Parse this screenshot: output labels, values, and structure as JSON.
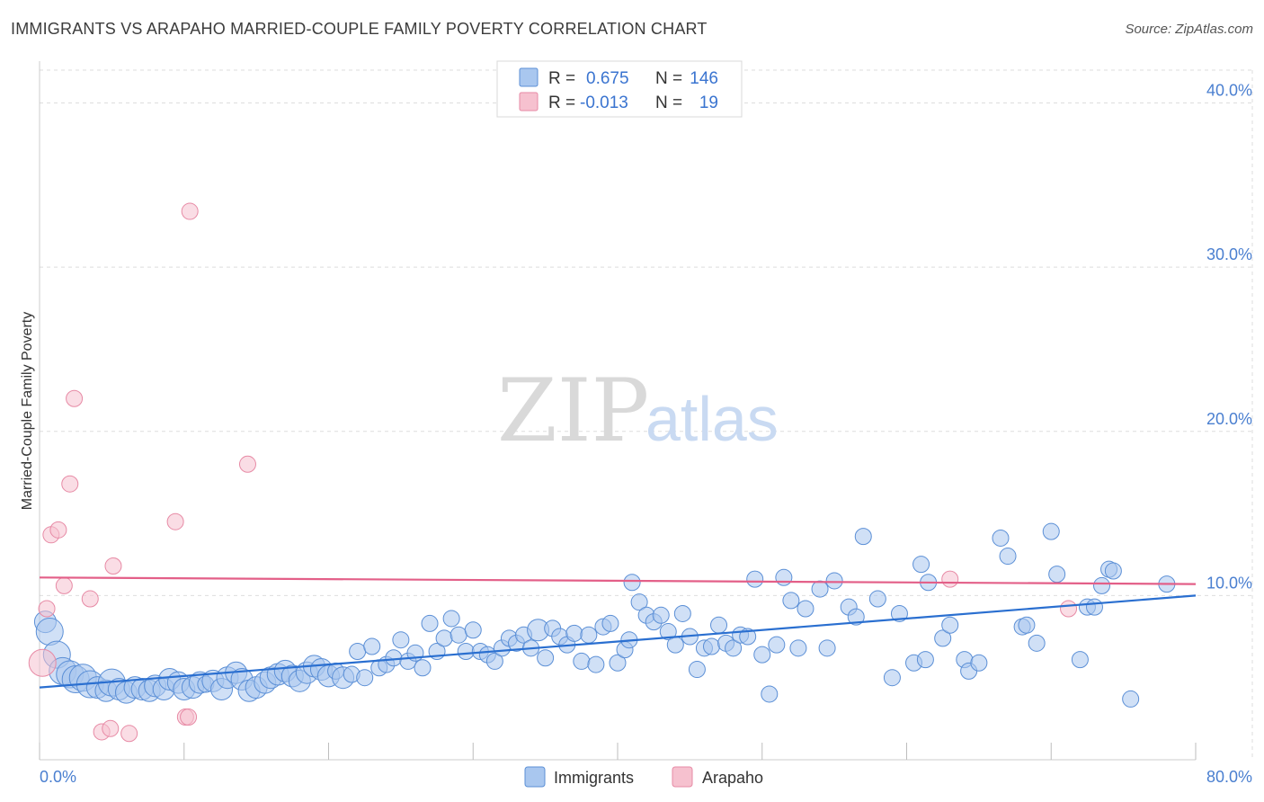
{
  "header": {
    "title": "IMMIGRANTS VS ARAPAHO MARRIED-COUPLE FAMILY POVERTY CORRELATION CHART",
    "source": "Source: ZipAtlas.com"
  },
  "watermark": {
    "zip": "ZIP",
    "atlas": "atlas"
  },
  "colors": {
    "immigrants_fill": "#a9c7ef",
    "immigrants_stroke": "#5b8fd6",
    "immigrants_line": "#2a6fd0",
    "arapaho_fill": "#f6c1cf",
    "arapaho_stroke": "#e78aa5",
    "arapaho_line": "#e35f88",
    "grid": "#dddddd",
    "axis_text": "#4a7fd0"
  },
  "legend": {
    "rows": [
      {
        "r_label": "R =",
        "r_value": "0.675",
        "n_label": "N =",
        "n_value": "146"
      },
      {
        "r_label": "R =",
        "r_value": "-0.013",
        "n_label": "N =",
        "n_value": "19"
      }
    ]
  },
  "chart_data": {
    "type": "scatter",
    "title": "IMMIGRANTS VS ARAPAHO MARRIED-COUPLE FAMILY POVERTY CORRELATION CHART",
    "xlabel": "",
    "ylabel": "Married-Couple Family Poverty",
    "xlim": [
      0,
      80
    ],
    "ylim": [
      0,
      42
    ],
    "x_tick_labels": [
      "0.0%",
      "80.0%"
    ],
    "y_ticks": [
      10,
      20,
      30,
      40
    ],
    "y_tick_labels": [
      "10.0%",
      "20.0%",
      "30.0%",
      "40.0%"
    ],
    "grid": true,
    "series": [
      {
        "name": "Immigrants",
        "trend": {
          "x0": 0,
          "y0": 4.4,
          "x1": 80,
          "y1": 10.0
        },
        "points": [
          [
            0.4,
            8.4,
            2
          ],
          [
            0.7,
            7.8,
            3
          ],
          [
            1.2,
            6.4,
            3
          ],
          [
            1.6,
            5.4,
            3
          ],
          [
            2.1,
            5.2,
            3
          ],
          [
            2.5,
            4.9,
            3
          ],
          [
            3.0,
            5.0,
            3
          ],
          [
            3.5,
            4.6,
            3
          ],
          [
            4.0,
            4.4,
            2
          ],
          [
            4.6,
            4.2,
            2
          ],
          [
            5.0,
            4.7,
            3
          ],
          [
            5.5,
            4.3,
            2
          ],
          [
            6.0,
            4.1,
            2
          ],
          [
            6.6,
            4.4,
            2
          ],
          [
            7.1,
            4.3,
            2
          ],
          [
            7.6,
            4.2,
            2
          ],
          [
            8.0,
            4.5,
            2
          ],
          [
            8.6,
            4.3,
            2
          ],
          [
            9.0,
            4.9,
            2
          ],
          [
            9.6,
            4.7,
            2
          ],
          [
            10.0,
            4.3,
            2
          ],
          [
            10.6,
            4.4,
            2
          ],
          [
            11.1,
            4.7,
            2
          ],
          [
            11.5,
            4.6,
            1
          ],
          [
            12.0,
            4.8,
            2
          ],
          [
            12.6,
            4.3,
            2
          ],
          [
            13.0,
            5.0,
            2
          ],
          [
            13.6,
            5.3,
            2
          ],
          [
            14.0,
            4.9,
            2
          ],
          [
            14.5,
            4.2,
            2
          ],
          [
            15.0,
            4.4,
            2
          ],
          [
            15.6,
            4.7,
            2
          ],
          [
            16.0,
            5.0,
            2
          ],
          [
            16.5,
            5.2,
            2
          ],
          [
            17.0,
            5.4,
            2
          ],
          [
            17.5,
            5.1,
            2
          ],
          [
            18.0,
            4.8,
            2
          ],
          [
            18.5,
            5.3,
            2
          ],
          [
            19.0,
            5.7,
            2
          ],
          [
            19.5,
            5.5,
            2
          ],
          [
            20.0,
            5.1,
            2
          ],
          [
            20.5,
            5.4,
            1
          ],
          [
            21.0,
            5.0,
            2
          ],
          [
            21.6,
            5.2,
            1
          ],
          [
            22.0,
            6.6,
            1
          ],
          [
            22.5,
            5.0,
            1
          ],
          [
            23.0,
            6.9,
            1
          ],
          [
            23.5,
            5.6,
            1
          ],
          [
            24.0,
            5.8,
            1
          ],
          [
            24.5,
            6.2,
            1
          ],
          [
            25.0,
            7.3,
            1
          ],
          [
            25.5,
            6.0,
            1
          ],
          [
            26.0,
            6.5,
            1
          ],
          [
            26.5,
            5.6,
            1
          ],
          [
            27.0,
            8.3,
            1
          ],
          [
            27.5,
            6.6,
            1
          ],
          [
            28.0,
            7.4,
            1
          ],
          [
            28.5,
            8.6,
            1
          ],
          [
            29.0,
            7.6,
            1
          ],
          [
            29.5,
            6.6,
            1
          ],
          [
            30.0,
            7.9,
            1
          ],
          [
            30.5,
            6.6,
            1
          ],
          [
            31.0,
            6.4,
            1
          ],
          [
            31.5,
            6.0,
            1
          ],
          [
            32.0,
            6.8,
            1
          ],
          [
            32.5,
            7.4,
            1
          ],
          [
            33.0,
            7.1,
            1
          ],
          [
            33.5,
            7.6,
            1
          ],
          [
            34.0,
            6.8,
            1
          ],
          [
            34.5,
            7.9,
            2
          ],
          [
            35.0,
            6.2,
            1
          ],
          [
            35.5,
            8.0,
            1
          ],
          [
            36.0,
            7.5,
            1
          ],
          [
            36.5,
            7.0,
            1
          ],
          [
            37.0,
            7.7,
            1
          ],
          [
            37.5,
            6.0,
            1
          ],
          [
            38.0,
            7.6,
            1
          ],
          [
            38.5,
            5.8,
            1
          ],
          [
            39.0,
            8.1,
            1
          ],
          [
            39.5,
            8.3,
            1
          ],
          [
            40.0,
            5.9,
            1
          ],
          [
            40.5,
            6.7,
            1
          ],
          [
            40.8,
            7.3,
            1
          ],
          [
            41.0,
            10.8,
            1
          ],
          [
            41.5,
            9.6,
            1
          ],
          [
            42.0,
            8.8,
            1
          ],
          [
            42.5,
            8.4,
            1
          ],
          [
            43.0,
            8.8,
            1
          ],
          [
            43.5,
            7.8,
            1
          ],
          [
            44.0,
            7.0,
            1
          ],
          [
            44.5,
            8.9,
            1
          ],
          [
            45.0,
            7.5,
            1
          ],
          [
            45.5,
            5.5,
            1
          ],
          [
            46.0,
            6.8,
            1
          ],
          [
            46.5,
            6.9,
            1
          ],
          [
            47.0,
            8.2,
            1
          ],
          [
            47.5,
            7.1,
            1
          ],
          [
            48.0,
            6.8,
            1
          ],
          [
            48.5,
            7.6,
            1
          ],
          [
            49.0,
            7.5,
            1
          ],
          [
            49.5,
            11.0,
            1
          ],
          [
            50.0,
            6.4,
            1
          ],
          [
            50.5,
            4.0,
            1
          ],
          [
            51.0,
            7.0,
            1
          ],
          [
            51.5,
            11.1,
            1
          ],
          [
            52.0,
            9.7,
            1
          ],
          [
            52.5,
            6.8,
            1
          ],
          [
            53.0,
            9.2,
            1
          ],
          [
            54.0,
            10.4,
            1
          ],
          [
            54.5,
            6.8,
            1
          ],
          [
            55.0,
            10.9,
            1
          ],
          [
            56.0,
            9.3,
            1
          ],
          [
            56.5,
            8.7,
            1
          ],
          [
            57.0,
            13.6,
            1
          ],
          [
            58.0,
            9.8,
            1
          ],
          [
            59.0,
            5.0,
            1
          ],
          [
            59.5,
            8.9,
            1
          ],
          [
            60.5,
            5.9,
            1
          ],
          [
            61.0,
            11.9,
            1
          ],
          [
            61.3,
            6.1,
            1
          ],
          [
            61.5,
            10.8,
            1
          ],
          [
            62.5,
            7.4,
            1
          ],
          [
            63.0,
            8.2,
            1
          ],
          [
            64.0,
            6.1,
            1
          ],
          [
            64.3,
            5.4,
            1
          ],
          [
            65.0,
            5.9,
            1
          ],
          [
            66.5,
            13.5,
            1
          ],
          [
            67.0,
            12.4,
            1
          ],
          [
            68.0,
            8.1,
            1
          ],
          [
            68.3,
            8.2,
            1
          ],
          [
            69.0,
            7.1,
            1
          ],
          [
            70.0,
            13.9,
            1
          ],
          [
            70.4,
            11.3,
            1
          ],
          [
            72.0,
            6.1,
            1
          ],
          [
            72.5,
            9.3,
            1
          ],
          [
            73.0,
            9.3,
            1
          ],
          [
            73.5,
            10.6,
            1
          ],
          [
            74.0,
            11.6,
            1
          ],
          [
            74.3,
            11.5,
            1
          ],
          [
            75.5,
            3.7,
            1
          ],
          [
            78.0,
            10.7,
            1
          ]
        ]
      },
      {
        "name": "Arapaho",
        "trend": {
          "x0": 0,
          "y0": 11.1,
          "x1": 80,
          "y1": 10.7
        },
        "points": [
          [
            0.2,
            5.9,
            3
          ],
          [
            0.5,
            9.2,
            1
          ],
          [
            0.8,
            13.7,
            1
          ],
          [
            1.3,
            14.0,
            1
          ],
          [
            1.7,
            10.6,
            1
          ],
          [
            2.1,
            16.8,
            1
          ],
          [
            2.4,
            22.0,
            1
          ],
          [
            3.5,
            9.8,
            1
          ],
          [
            4.3,
            1.7,
            1
          ],
          [
            4.9,
            1.9,
            1
          ],
          [
            5.1,
            11.8,
            1
          ],
          [
            6.2,
            1.6,
            1
          ],
          [
            9.4,
            14.5,
            1
          ],
          [
            10.1,
            2.6,
            1
          ],
          [
            10.3,
            2.6,
            1
          ],
          [
            10.4,
            33.4,
            1
          ],
          [
            14.4,
            18.0,
            1
          ],
          [
            63.0,
            11.0,
            1
          ],
          [
            71.2,
            9.2,
            1
          ]
        ]
      }
    ],
    "legend_labels": [
      "Immigrants",
      "Arapaho"
    ]
  }
}
